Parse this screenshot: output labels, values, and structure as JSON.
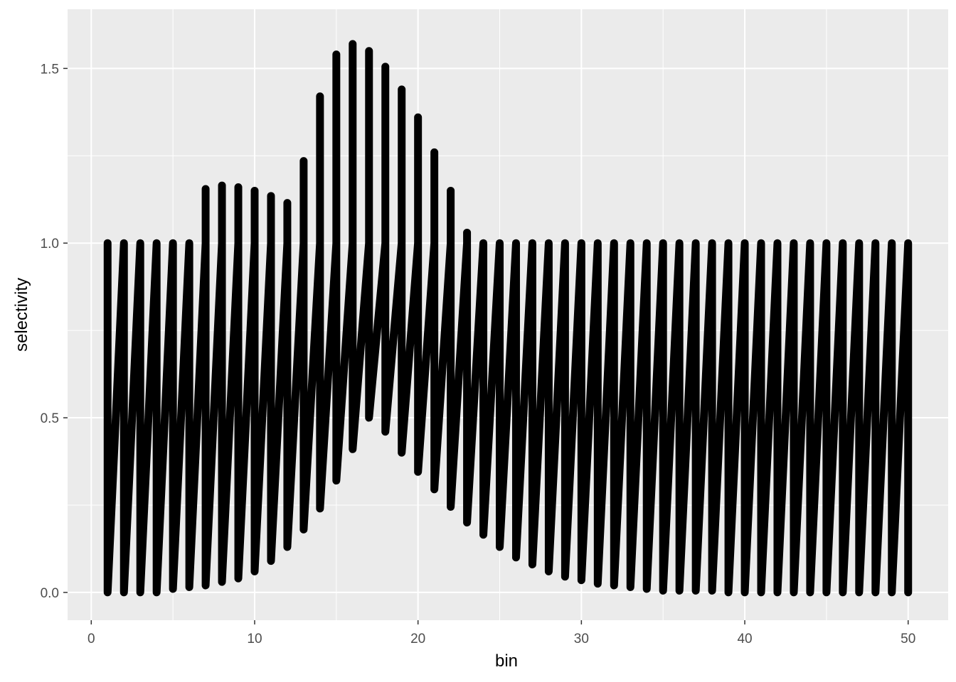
{
  "chart_data": {
    "type": "line",
    "title": "",
    "xlabel": "bin",
    "ylabel": "selectivity",
    "xlim": [
      -1.45,
      52.45
    ],
    "ylim": [
      -0.0795,
      1.6695
    ],
    "x_ticks": [
      0,
      10,
      20,
      30,
      40,
      50
    ],
    "x_tick_labels": [
      "0",
      "10",
      "20",
      "30",
      "40",
      "50"
    ],
    "y_ticks": [
      0.0,
      0.5,
      1.0,
      1.5
    ],
    "y_tick_labels": [
      "0.0",
      "0.5",
      "1.0",
      "1.5"
    ],
    "grid": true,
    "legend": "none",
    "colors": {
      "panel_background": "#ebebeb",
      "grid_major": "#ffffff",
      "line": "#000000",
      "tick_label": "#4d4d4d"
    },
    "bins": [
      1,
      2,
      3,
      4,
      5,
      6,
      7,
      8,
      9,
      10,
      11,
      12,
      13,
      14,
      15,
      16,
      17,
      18,
      19,
      20,
      21,
      22,
      23,
      24,
      25,
      26,
      27,
      28,
      29,
      30,
      31,
      32,
      33,
      34,
      35,
      36,
      37,
      38,
      39,
      40,
      41,
      42,
      43,
      44,
      45,
      46,
      47,
      48,
      49,
      50
    ],
    "low_values": [
      0.0,
      0.0,
      0.0,
      0.0,
      0.01,
      0.015,
      0.02,
      0.03,
      0.04,
      0.06,
      0.09,
      0.13,
      0.18,
      0.24,
      0.32,
      0.41,
      0.5,
      0.46,
      0.4,
      0.345,
      0.295,
      0.245,
      0.2,
      0.165,
      0.13,
      0.1,
      0.08,
      0.06,
      0.045,
      0.035,
      0.025,
      0.02,
      0.015,
      0.01,
      0.005,
      0.005,
      0.005,
      0.005,
      0.0,
      0.0,
      0.0,
      0.0,
      0.0,
      0.0,
      0.0,
      0.0,
      0.0,
      0.0,
      0.0,
      0.0
    ],
    "high_values": [
      1.0,
      1.0,
      1.0,
      1.0,
      1.0,
      1.0,
      1.155,
      1.165,
      1.16,
      1.15,
      1.135,
      1.115,
      1.235,
      1.42,
      1.54,
      1.57,
      1.55,
      1.505,
      1.44,
      1.36,
      1.26,
      1.15,
      1.03,
      1.0,
      1.0,
      1.0,
      1.0,
      1.0,
      1.0,
      1.0,
      1.0,
      1.0,
      1.0,
      1.0,
      1.0,
      1.0,
      1.0,
      1.0,
      1.0,
      1.0,
      1.0,
      1.0,
      1.0,
      1.0,
      1.0,
      1.0,
      1.0,
      1.0,
      1.0,
      1.0
    ]
  }
}
